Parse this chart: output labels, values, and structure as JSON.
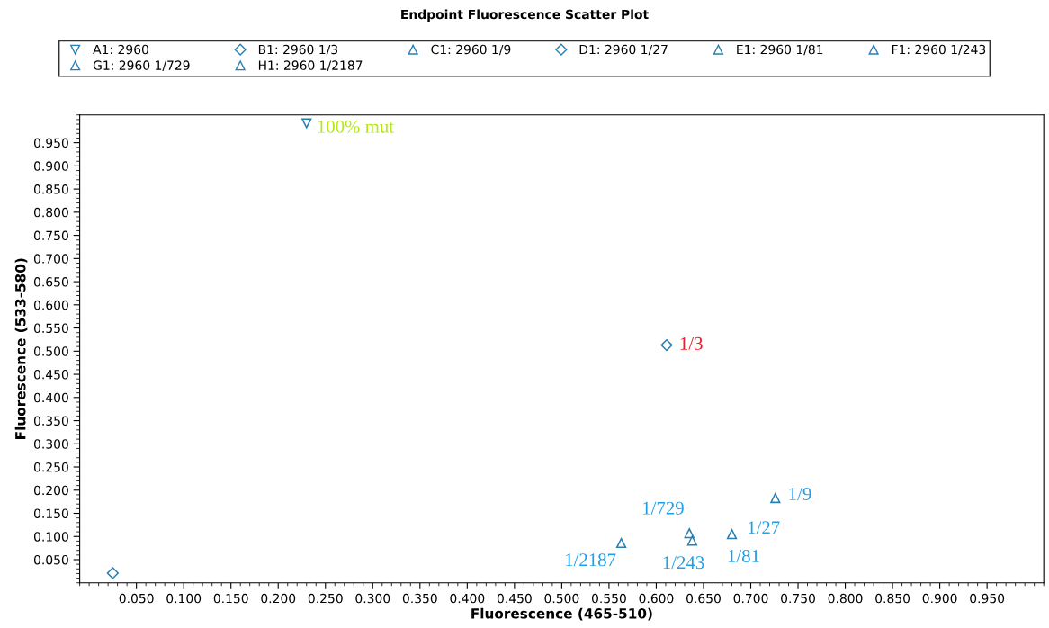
{
  "chart_data": {
    "type": "scatter",
    "title": "Endpoint Fluorescence Scatter Plot",
    "xlabel": "Fluorescence (465-510)",
    "ylabel": "Fluorescence (533-580)",
    "xlim": [
      -0.01,
      1.01
    ],
    "ylim": [
      0,
      1.01
    ],
    "xticks": [
      {
        "value": 0.05,
        "label": "0.050"
      },
      {
        "value": 0.1,
        "label": "0.100"
      },
      {
        "value": 0.15,
        "label": "0.150"
      },
      {
        "value": 0.2,
        "label": "0.200"
      },
      {
        "value": 0.25,
        "label": "0.250"
      },
      {
        "value": 0.3,
        "label": "0.300"
      },
      {
        "value": 0.35,
        "label": "0.350"
      },
      {
        "value": 0.4,
        "label": "0.400"
      },
      {
        "value": 0.45,
        "label": "0.450"
      },
      {
        "value": 0.5,
        "label": "0.500"
      },
      {
        "value": 0.55,
        "label": "0.550"
      },
      {
        "value": 0.6,
        "label": "0.600"
      },
      {
        "value": 0.65,
        "label": "0.650"
      },
      {
        "value": 0.7,
        "label": "0.700"
      },
      {
        "value": 0.75,
        "label": "0.750"
      },
      {
        "value": 0.8,
        "label": "0.800"
      },
      {
        "value": 0.85,
        "label": "0.850"
      },
      {
        "value": 0.9,
        "label": "0.900"
      },
      {
        "value": 0.95,
        "label": "0.950"
      }
    ],
    "yticks": [
      {
        "value": 0.05,
        "label": "0.050"
      },
      {
        "value": 0.1,
        "label": "0.100"
      },
      {
        "value": 0.15,
        "label": "0.150"
      },
      {
        "value": 0.2,
        "label": "0.200"
      },
      {
        "value": 0.25,
        "label": "0.250"
      },
      {
        "value": 0.3,
        "label": "0.300"
      },
      {
        "value": 0.35,
        "label": "0.350"
      },
      {
        "value": 0.4,
        "label": "0.400"
      },
      {
        "value": 0.45,
        "label": "0.450"
      },
      {
        "value": 0.5,
        "label": "0.500"
      },
      {
        "value": 0.55,
        "label": "0.550"
      },
      {
        "value": 0.6,
        "label": "0.600"
      },
      {
        "value": 0.65,
        "label": "0.650"
      },
      {
        "value": 0.7,
        "label": "0.700"
      },
      {
        "value": 0.75,
        "label": "0.750"
      },
      {
        "value": 0.8,
        "label": "0.800"
      },
      {
        "value": 0.85,
        "label": "0.850"
      },
      {
        "value": 0.9,
        "label": "0.900"
      },
      {
        "value": 0.95,
        "label": "0.950"
      }
    ],
    "grid": false,
    "legend": "top",
    "series": [
      {
        "name": "A1: 2960",
        "color": "#2a7fb0",
        "marker": "triangle_down",
        "x": [
          0.23
        ],
        "values": [
          0.992
        ]
      },
      {
        "name": "B1: 2960 1/3",
        "color": "#2a7fb0",
        "marker": "diamond",
        "x": [
          0.611
        ],
        "values": [
          0.513
        ]
      },
      {
        "name": "C1: 2960 1/9",
        "color": "#2a7fb0",
        "marker": "triangle",
        "x": [
          0.726
        ],
        "values": [
          0.183
        ]
      },
      {
        "name": "D1: 2960 1/27",
        "color": "#2a7fb0",
        "marker": "diamond",
        "x": [
          0.025
        ],
        "values": [
          0.021
        ]
      },
      {
        "name": "E1: 2960 1/81",
        "color": "#2a7fb0",
        "marker": "triangle",
        "x": [
          0.68
        ],
        "values": [
          0.105
        ]
      },
      {
        "name": "F1: 2960 1/243",
        "color": "#2a7fb0",
        "marker": "triangle",
        "x": [
          0.638
        ],
        "values": [
          0.091
        ]
      },
      {
        "name": "G1: 2960 1/729",
        "color": "#2a7fb0",
        "marker": "triangle",
        "x": [
          0.635
        ],
        "values": [
          0.107
        ]
      },
      {
        "name": "H1: 2960 1/2187",
        "color": "#2a7fb0",
        "marker": "triangle",
        "x": [
          0.563
        ],
        "values": [
          0.086
        ]
      }
    ],
    "annotations": [
      {
        "text": "100% mut",
        "x": 0.23,
        "y": 0.992
      },
      {
        "text": "1/3",
        "x": 0.611,
        "y": 0.513
      },
      {
        "text": "1/9",
        "x": 0.726,
        "y": 0.183
      },
      {
        "text": "1/27",
        "x": 0.68,
        "y": 0.105
      },
      {
        "text": "1/81",
        "x": 0.68,
        "y": 0.105
      },
      {
        "text": "1/243",
        "x": 0.638,
        "y": 0.091
      },
      {
        "text": "1/729",
        "x": 0.635,
        "y": 0.107
      },
      {
        "text": "1/2187",
        "x": 0.563,
        "y": 0.086
      }
    ]
  }
}
